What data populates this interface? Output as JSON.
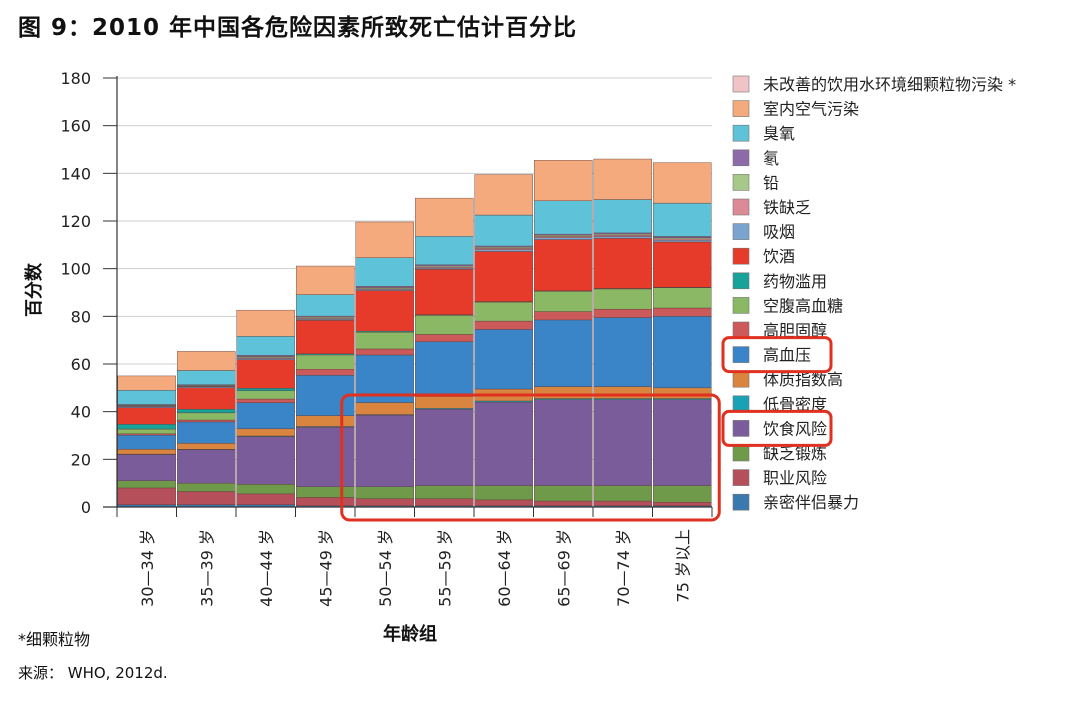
{
  "title": "图 9：2010 年中国各危险因素所致死亡估计百分比",
  "footnote": "*细颗粒物",
  "source": "来源： WHO, 2012d.",
  "chart_data": {
    "type": "bar",
    "stacked": true,
    "xlabel": "年龄组",
    "ylabel": "百分数",
    "ylim": [
      0,
      180
    ],
    "yticks": [
      0,
      20,
      40,
      60,
      80,
      100,
      120,
      140,
      160,
      180
    ],
    "grid": true,
    "legend_position": "right",
    "categories": [
      "30—34 岁",
      "35—39 岁",
      "40—44 岁",
      "45—49 岁",
      "50—54 岁",
      "55—59 岁",
      "60—64 岁",
      "65—69 岁",
      "70—74 岁",
      "75 岁以上"
    ],
    "series": [
      {
        "name": "亲密伴侣暴力",
        "color": "#3a78b0",
        "values": [
          1,
          1,
          1,
          0.5,
          0.5,
          0.5,
          0.5,
          0.5,
          0.5,
          0.5
        ]
      },
      {
        "name": "职业风险",
        "color": "#b5505a",
        "values": [
          7,
          5.5,
          4.5,
          3.5,
          3,
          3,
          2.5,
          2,
          2,
          1.5
        ]
      },
      {
        "name": "缺乏锻炼",
        "color": "#6e9a4a",
        "values": [
          3,
          3.5,
          4,
          4.5,
          5,
          5.5,
          6,
          6.5,
          6.5,
          7
        ]
      },
      {
        "name": "饮食风险",
        "color": "#7a5c9a",
        "values": [
          11,
          14,
          20,
          25,
          30,
          32,
          35,
          36,
          36,
          36
        ]
      },
      {
        "name": "低骨密度",
        "color": "#17a3b5",
        "values": [
          0.2,
          0.2,
          0.3,
          0.3,
          0.3,
          0.4,
          0.5,
          0.5,
          0.5,
          0.5
        ]
      },
      {
        "name": "体质指数高",
        "color": "#d98540",
        "values": [
          2,
          2.5,
          3,
          4.5,
          5,
          5,
          5,
          5,
          5,
          4.5
        ]
      },
      {
        "name": "高血压",
        "color": "#3a85c8",
        "values": [
          6,
          9,
          11,
          17,
          20,
          23,
          25,
          28,
          29,
          30
        ]
      },
      {
        "name": "高胆固醇",
        "color": "#cd5a5a",
        "values": [
          0.5,
          0.8,
          1.5,
          2.5,
          2.5,
          3,
          3.5,
          3.5,
          3.5,
          3.5
        ]
      },
      {
        "name": "空腹高血糖",
        "color": "#8bb865",
        "values": [
          2,
          3,
          3.5,
          6,
          7,
          8,
          8,
          8.5,
          8.5,
          8.5
        ]
      },
      {
        "name": "药物滥用",
        "color": "#17a39a",
        "values": [
          2,
          1.5,
          1,
          0.5,
          0.5,
          0.3,
          0.2,
          0.2,
          0.2,
          0.2
        ]
      },
      {
        "name": "饮酒",
        "color": "#e63b2a",
        "values": [
          7,
          9,
          12,
          14,
          17,
          19,
          21,
          21.5,
          21,
          19
        ]
      },
      {
        "name": "吸烟",
        "color": "#7aa3d0",
        "values": [
          0.5,
          0.5,
          0.5,
          0.5,
          0.5,
          0.5,
          0.8,
          0.8,
          0.8,
          0.8
        ]
      },
      {
        "name": "铁缺乏",
        "color": "#dc8a95",
        "values": [
          0.2,
          0.2,
          0.3,
          0.3,
          0.3,
          0.4,
          0.5,
          0.5,
          0.5,
          0.5
        ]
      },
      {
        "name": "铅",
        "color": "#a6c98a",
        "values": [
          0.3,
          0.3,
          0.5,
          0.5,
          0.5,
          0.5,
          0.5,
          0.5,
          0.5,
          0.5
        ]
      },
      {
        "name": "氡",
        "color": "#8c6ba8",
        "values": [
          0.3,
          0.3,
          0.5,
          0.5,
          0.5,
          0.5,
          0.5,
          0.5,
          0.5,
          0.5
        ]
      },
      {
        "name": "臭氧",
        "color": "#5ec2d8",
        "values": [
          6,
          6,
          8,
          9,
          12,
          12,
          13,
          14,
          14,
          14
        ]
      },
      {
        "name": "室内空气污染",
        "color": "#f4aa7c",
        "values": [
          6,
          8,
          11,
          12,
          15,
          16,
          17,
          17,
          17,
          17
        ]
      },
      {
        "name": "未改善的饮用水环境细颗粒物污染 *",
        "color": "#f0c4c6",
        "values": [
          0,
          0,
          0,
          0,
          0,
          0,
          0,
          0,
          0,
          0
        ]
      }
    ],
    "highlights": {
      "color": "#e03020",
      "legend_items": [
        "高血压",
        "饮食风险"
      ],
      "category_range": [
        "50—54 岁",
        "75 岁以上"
      ],
      "value_range": [
        0,
        47
      ]
    }
  }
}
